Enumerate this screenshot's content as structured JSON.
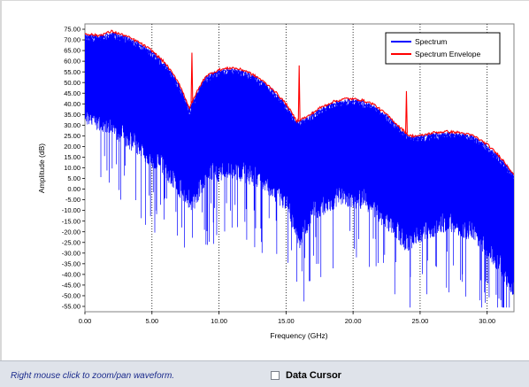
{
  "status_bar": {
    "hint": "Right mouse click to zoom/pan waveform.",
    "data_cursor_label": "Data Cursor",
    "data_cursor_checked": false
  },
  "chart_data": {
    "type": "line",
    "xlabel": "Frequency (GHz)",
    "ylabel": "Amplitude (dB)",
    "xlim": [
      0,
      32
    ],
    "ylim": [
      -57.5,
      77.5
    ],
    "x_ticks": [
      0,
      5,
      10,
      15,
      20,
      25,
      30
    ],
    "x_tick_labels": [
      "0.00",
      "5.00",
      "10.00",
      "15.00",
      "20.00",
      "25.00",
      "30.00"
    ],
    "y_ticks": [
      75,
      70,
      65,
      60,
      55,
      50,
      45,
      40,
      35,
      30,
      25,
      20,
      15,
      10,
      5,
      0,
      -5,
      -10,
      -15,
      -20,
      -25,
      -30,
      -35,
      -40,
      -45,
      -50,
      -55
    ],
    "y_tick_labels": [
      "75.00",
      "70.00",
      "65.00",
      "60.00",
      "55.00",
      "50.00",
      "45.00",
      "40.00",
      "35.00",
      "30.00",
      "25.00",
      "20.00",
      "15.00",
      "10.00",
      "5.00",
      "0.00",
      "-5.00",
      "-10.00",
      "-15.00",
      "-20.00",
      "-25.00",
      "-30.00",
      "-35.00",
      "-40.00",
      "-45.00",
      "-50.00",
      "-55.00"
    ],
    "grid": "vertical-dotted",
    "legend_position": "top-right",
    "series": [
      {
        "name": "Spectrum",
        "color": "#0000ff",
        "style": "dense spectrum fill below envelope",
        "approx_floor": [
          [
            0,
            40
          ],
          [
            2,
            35
          ],
          [
            4,
            25
          ],
          [
            6,
            15
          ],
          [
            8,
            -2
          ],
          [
            9,
            12
          ],
          [
            11,
            15
          ],
          [
            13,
            10
          ],
          [
            15,
            0
          ],
          [
            16,
            -18
          ],
          [
            17,
            -5
          ],
          [
            19,
            2
          ],
          [
            21,
            0
          ],
          [
            23,
            -12
          ],
          [
            24,
            -20
          ],
          [
            25,
            -15
          ],
          [
            27,
            -10
          ],
          [
            29,
            -15
          ],
          [
            31,
            -30
          ],
          [
            32,
            -42
          ]
        ]
      },
      {
        "name": "Spectrum Envelope",
        "color": "#ff0000",
        "envelope": [
          [
            0,
            73
          ],
          [
            1,
            72
          ],
          [
            2,
            74
          ],
          [
            3,
            72
          ],
          [
            4,
            69
          ],
          [
            5,
            65
          ],
          [
            6,
            59
          ],
          [
            7,
            50
          ],
          [
            7.8,
            38
          ],
          [
            8.3,
            45
          ],
          [
            9,
            53
          ],
          [
            10,
            56
          ],
          [
            11,
            57
          ],
          [
            12,
            55.5
          ],
          [
            13,
            52
          ],
          [
            14,
            47
          ],
          [
            15,
            40
          ],
          [
            15.8,
            32
          ],
          [
            16.6,
            34
          ],
          [
            17.5,
            38
          ],
          [
            18.5,
            41
          ],
          [
            19.5,
            42.5
          ],
          [
            20.5,
            42
          ],
          [
            21.5,
            40
          ],
          [
            22.5,
            35
          ],
          [
            23.5,
            29
          ],
          [
            24.2,
            25
          ],
          [
            25,
            25
          ],
          [
            26,
            26.5
          ],
          [
            27,
            27
          ],
          [
            28,
            26.5
          ],
          [
            29,
            25
          ],
          [
            30,
            21
          ],
          [
            31,
            15
          ],
          [
            32,
            7
          ]
        ],
        "spikes": [
          [
            7.98,
            64
          ],
          [
            15.98,
            58
          ],
          [
            23.98,
            46
          ]
        ]
      }
    ]
  }
}
